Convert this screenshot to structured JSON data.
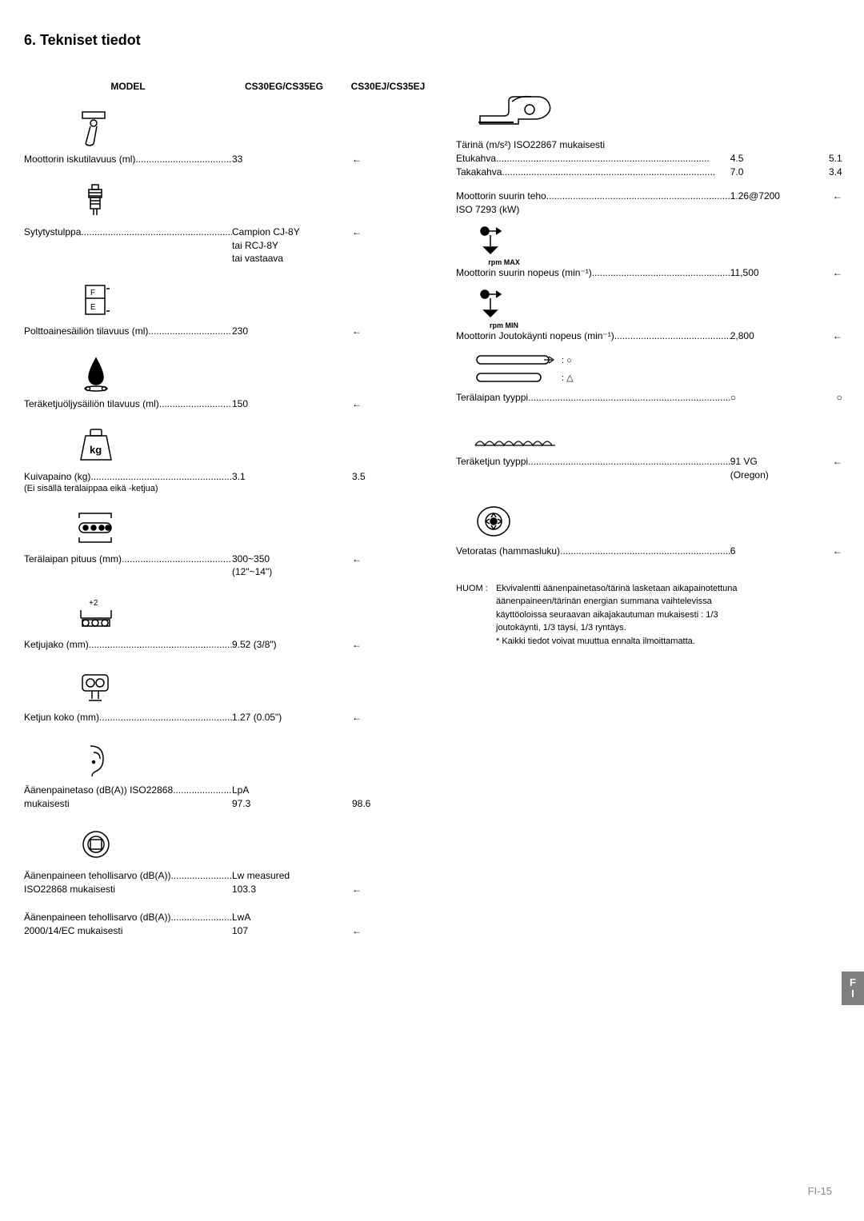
{
  "title": "6. Tekniset tiedot",
  "header": {
    "label": "MODEL",
    "col1": "CS30EG/CS35EG",
    "col2": "CS30EJ/CS35EJ"
  },
  "left": [
    {
      "icon": "piston",
      "label": "Moottorin iskutilavuus (ml)",
      "v1": "33",
      "v2": "←"
    },
    {
      "icon": "sparkplug",
      "label": "Sytytystulppa",
      "v1": "Campion CJ-8Y",
      "v1b": "tai RCJ-8Y",
      "v1c": "tai vastaava",
      "v2": "←"
    },
    {
      "icon": "fe",
      "label": "Polttoainesäiliön tilavuus (ml)",
      "v1": "230",
      "v2": "←"
    },
    {
      "icon": "oildrop",
      "label": "Teräketjuöljysäiliön tilavuus  (ml)",
      "v1": "150",
      "v2": "←"
    },
    {
      "icon": "weight",
      "label": "Kuivapaino (kg)",
      "sub": "(Ei sisällä terälaippaa eikä -ketjua)",
      "v1": "3.1",
      "v2": "3.5"
    },
    {
      "icon": "barlen",
      "label": "Terälaipan pituus (mm)",
      "v1": "300~350",
      "v1b": "(12\"~14\")",
      "v2": "←"
    },
    {
      "icon": "pitch",
      "label": "Ketjujako (mm)",
      "v1": "9.52 (3/8\")",
      "v2": "←"
    },
    {
      "icon": "gauge",
      "label": "Ketjun koko  (mm)",
      "v1": "1.27 (0.05\")",
      "v2": "←"
    },
    {
      "icon": "ear",
      "label": "Äänenpainetaso (dB(A)) ISO22868",
      "sub2": "mukaisesti",
      "v1": "LpA",
      "v1b": "97.3",
      "v2": "98.6",
      "v2below": true
    },
    {
      "icon": "speaker",
      "label": "Äänenpaineen tehollisarvo (dB(A))",
      "sub2": "ISO22868 mukaisesti",
      "v1": "Lw  measured",
      "v1b": "103.3",
      "v2": "←",
      "v2below": true
    },
    {
      "label": "Äänenpaineen tehollisarvo (dB(A))",
      "sub2": "2000/14/EC mukaisesti",
      "v1": "LwA",
      "v1b": "107",
      "v2": "←",
      "v2below": true
    }
  ],
  "right": [
    {
      "icon": "sawbody"
    },
    {
      "label": "Tärinä (m/s²) ISO22867 mukaisesti"
    },
    {
      "label": "Etukahva",
      "v1": "4.5",
      "v2": "5.1",
      "dotted": true
    },
    {
      "label": "Takakahva",
      "v1": "7.0",
      "v2": "3.4",
      "dotted": true
    },
    {
      "gap": 14
    },
    {
      "label": "Moottorin suurin teho",
      "v1": "1.26@7200",
      "v2": "←",
      "dotted": true
    },
    {
      "label": "ISO 7293 (kW)"
    },
    {
      "icon": "rpm",
      "caption": "rpm MAX"
    },
    {
      "label": "Moottorin suurin nopeus  (min⁻¹)",
      "v1": "11,500",
      "v2": "←",
      "dotted": true
    },
    {
      "icon": "rpm",
      "caption": "rpm MIN"
    },
    {
      "label": "Moottorin Joutokäynti nopeus  (min⁻¹)",
      "v1": "2,800",
      "v2": "←",
      "dotted": true
    },
    {
      "icon": "bars"
    },
    {
      "label": "Terälaipan  tyyppi",
      "v1": "○",
      "v2": "○",
      "dotted": true
    },
    {
      "gap": 30
    },
    {
      "icon": "chain"
    },
    {
      "label": "Teräketjun tyyppi",
      "v1": "91 VG",
      "v2": "←",
      "dotted": true
    },
    {
      "label": "",
      "v1": "(Oregon)"
    },
    {
      "gap": 16
    },
    {
      "icon": "sprocket"
    },
    {
      "label": "Vetoratas (hammasluku)",
      "v1": "6",
      "v2": "←",
      "dotted": true
    }
  ],
  "note": {
    "prefix": "HUOM :",
    "lines": [
      "Ekvivalentti äänenpainetaso/tärinä lasketaan aikapainotettuna",
      "äänenpaineen/tärinän energian summana vaihtelevissa",
      "käyttöoloissa seuraavan aikajakautuman mukaisesti : 1/3",
      "joutokäynti, 1/3 täysi, 1/3 ryntäys.",
      "* Kaikki tiedot voivat muuttua ennalta ilmoittamatta."
    ]
  },
  "footer": "FI-15",
  "tab": [
    "F",
    "I"
  ]
}
